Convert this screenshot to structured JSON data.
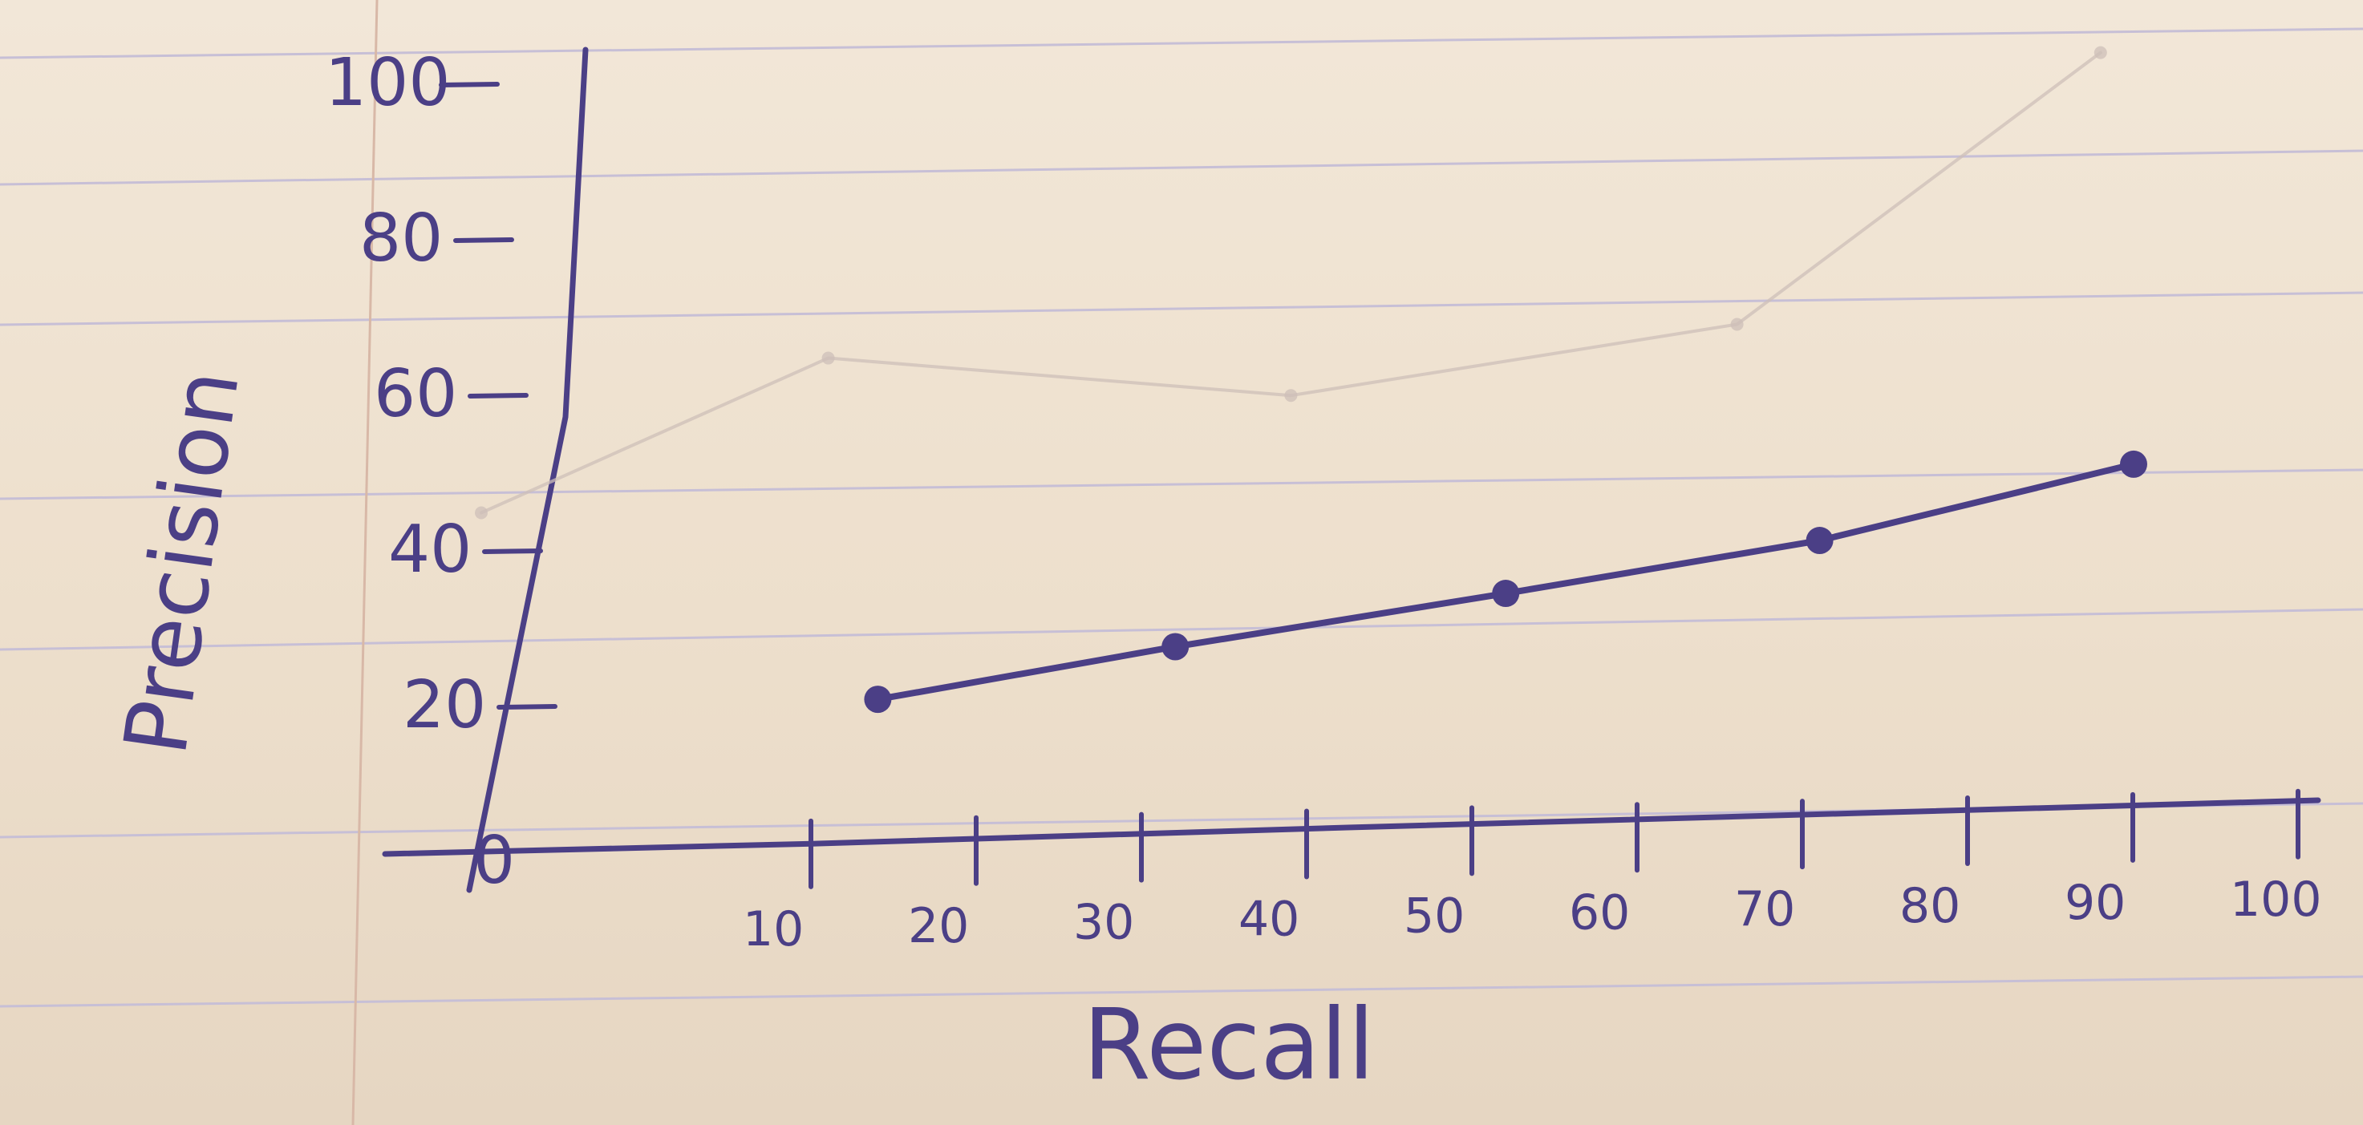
{
  "chart_data": {
    "type": "line",
    "xlabel": "Recall",
    "ylabel": "Precision",
    "x_ticks": [
      10,
      20,
      30,
      40,
      50,
      60,
      70,
      80,
      90,
      100
    ],
    "y_ticks": [
      0,
      20,
      40,
      60,
      80,
      100
    ],
    "xlim": [
      0,
      100
    ],
    "ylim": [
      0,
      100
    ],
    "grid": false,
    "series": [
      {
        "style": "dark",
        "color": "#4b3f86",
        "x": [
          24,
          42,
          62,
          81,
          100
        ],
        "y": [
          20,
          26,
          32,
          38,
          47
        ]
      },
      {
        "style": "faint",
        "color": "#cdbfb8",
        "x": [
          0,
          21,
          49,
          76,
          98
        ],
        "y": [
          45,
          64,
          58,
          66,
          100
        ]
      }
    ]
  }
}
